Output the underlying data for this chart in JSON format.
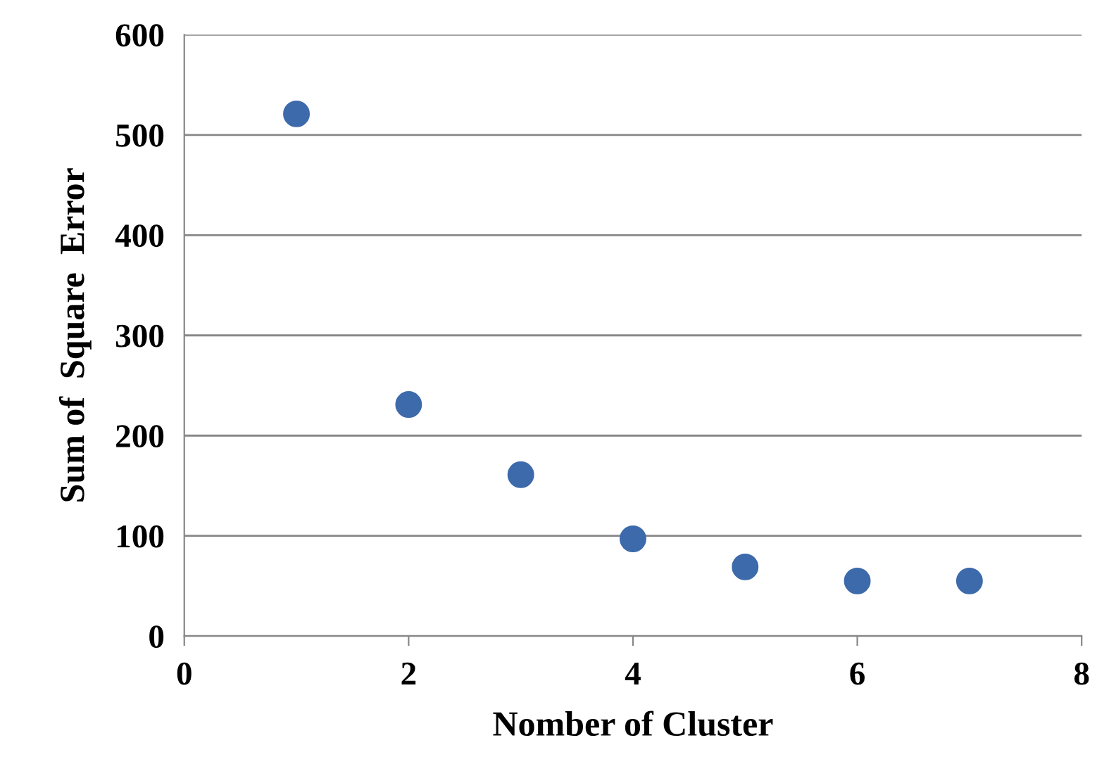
{
  "chart_data": {
    "type": "scatter",
    "xlabel": "Nomber of Cluster",
    "ylabel": "Sum of  Square  Error",
    "x": [
      1,
      2,
      3,
      4,
      5,
      6,
      7
    ],
    "series": [
      {
        "color": "#3d6aab",
        "values": [
          521,
          231,
          161,
          97,
          69,
          55,
          55
        ]
      }
    ],
    "xlim": [
      0,
      8
    ],
    "xticks": [
      0,
      2,
      4,
      6,
      8
    ],
    "ylim": [
      0,
      600
    ],
    "yticks": [
      0,
      100,
      200,
      300,
      400,
      500,
      600
    ],
    "grid": "y",
    "marker": "circle"
  }
}
